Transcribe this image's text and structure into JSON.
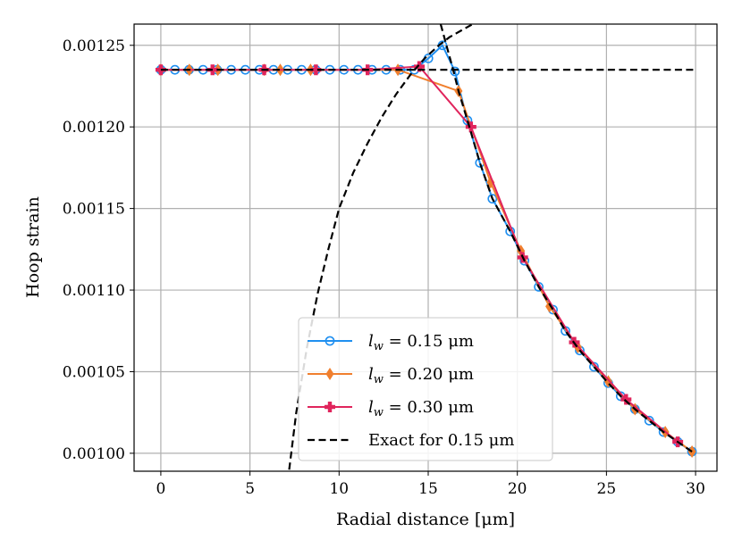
{
  "chart_data": {
    "type": "line",
    "title": "",
    "xlabel": "Radial distance [μm]",
    "ylabel": "Hoop strain",
    "xlim": [
      -1.5,
      31.2
    ],
    "ylim": [
      0.000989,
      0.001263
    ],
    "x_ticks": [
      0,
      5,
      10,
      15,
      20,
      25,
      30
    ],
    "x_tick_labels": [
      "0",
      "5",
      "10",
      "15",
      "20",
      "25",
      "30"
    ],
    "y_ticks": [
      0.001,
      0.00105,
      0.0011,
      0.00115,
      0.0012,
      0.00125
    ],
    "y_tick_labels": [
      "0.00100",
      "0.00105",
      "0.00110",
      "0.00115",
      "0.00120",
      "0.00125"
    ],
    "grid": true,
    "legend_position": "lower-center",
    "series": [
      {
        "name": "lw = 0.15 μm",
        "legend_main": "l",
        "legend_sub": "w",
        "legend_rest": " = 0.15 μm",
        "color": "#1f8ff0",
        "marker": "circle",
        "linestyle": "solid",
        "x": [
          0.0,
          0.79,
          1.58,
          2.37,
          3.16,
          3.95,
          4.74,
          5.53,
          6.32,
          7.11,
          7.9,
          8.69,
          9.48,
          10.27,
          11.06,
          11.85,
          12.64,
          13.43,
          14.22,
          15.01,
          15.8,
          16.5,
          17.2,
          17.9,
          18.6,
          19.6,
          20.4,
          21.2,
          22.0,
          22.7,
          23.5,
          24.3,
          25.1,
          25.8,
          26.6,
          27.4,
          28.2,
          29.0,
          29.8
        ],
        "y": [
          0.001235,
          0.001235,
          0.001235,
          0.001235,
          0.001235,
          0.001235,
          0.001235,
          0.001235,
          0.001235,
          0.001235,
          0.001235,
          0.001235,
          0.001235,
          0.001235,
          0.001235,
          0.001235,
          0.001235,
          0.001235,
          0.001235,
          0.001242,
          0.00125,
          0.001234,
          0.001204,
          0.001178,
          0.001156,
          0.001136,
          0.001118,
          0.001102,
          0.001088,
          0.001075,
          0.001063,
          0.001053,
          0.001043,
          0.001035,
          0.001027,
          0.00102,
          0.001013,
          0.001007,
          0.001001
        ]
      },
      {
        "name": "lw = 0.20 μm",
        "legend_main": "l",
        "legend_sub": "w",
        "legend_rest": " = 0.20 μm",
        "color": "#f07f2e",
        "marker": "diamond",
        "linestyle": "solid",
        "x": [
          0.0,
          1.6,
          3.2,
          5.8,
          6.7,
          8.4,
          13.3,
          16.7,
          18.5,
          20.2,
          21.8,
          23.4,
          25.1,
          26.6,
          28.3,
          29.8
        ],
        "y": [
          0.001235,
          0.001235,
          0.001235,
          0.001235,
          0.001235,
          0.001235,
          0.001235,
          0.001222,
          0.001166,
          0.001124,
          0.00109,
          0.001065,
          0.001044,
          0.001027,
          0.001013,
          0.001001
        ]
      },
      {
        "name": "lw = 0.30 μm",
        "legend_main": "l",
        "legend_sub": "w",
        "legend_rest": " = 0.30 μm",
        "color": "#e0245c",
        "marker": "plus",
        "linestyle": "solid",
        "x": [
          0.0,
          2.9,
          5.8,
          8.7,
          11.6,
          14.5,
          17.4,
          20.3,
          23.2,
          26.1,
          29.0
        ],
        "y": [
          0.001235,
          0.001235,
          0.001235,
          0.001235,
          0.001235,
          0.001237,
          0.0012,
          0.00112,
          0.001068,
          0.001033,
          0.001007
        ]
      },
      {
        "name": "Exact for 0.15 μm",
        "legend_rest": "Exact for 0.15 μm",
        "color": "#000000",
        "marker": "none",
        "linestyle": "dashed",
        "segments": [
          {
            "x": [
              0.0,
              4,
              8,
              12,
              14.5,
              16.0,
              30.0
            ],
            "y": [
              0.001235,
              0.001235,
              0.001235,
              0.001235,
              0.001235,
              0.001235,
              0.001235
            ]
          },
          {
            "x": [
              7.2,
              7.6,
              8.2,
              8.8,
              9.4,
              10.0,
              10.8,
              11.6,
              12.4,
              13.2,
              14.0,
              14.8,
              15.6,
              16.2,
              17.0,
              17.5
            ],
            "y": [
              0.00099,
              0.001025,
              0.001065,
              0.001098,
              0.001125,
              0.00115,
              0.001172,
              0.00119,
              0.001206,
              0.00122,
              0.001232,
              0.001242,
              0.00125,
              0.001255,
              0.00126,
              0.001263
            ]
          },
          {
            "x": [
              15.7,
              15.9,
              16.1,
              16.4,
              16.7,
              17.2,
              17.9,
              18.6,
              19.6,
              20.4,
              21.2,
              22.0,
              22.7,
              23.5,
              24.3,
              25.1,
              25.8,
              26.6,
              27.4,
              28.2,
              29.0,
              29.8
            ],
            "y": [
              0.001263,
              0.001255,
              0.001247,
              0.001235,
              0.001222,
              0.001204,
              0.001178,
              0.001156,
              0.001136,
              0.001118,
              0.001102,
              0.001088,
              0.001075,
              0.001063,
              0.001053,
              0.001043,
              0.001035,
              0.001027,
              0.00102,
              0.001013,
              0.001007,
              0.001001
            ]
          }
        ]
      }
    ]
  }
}
